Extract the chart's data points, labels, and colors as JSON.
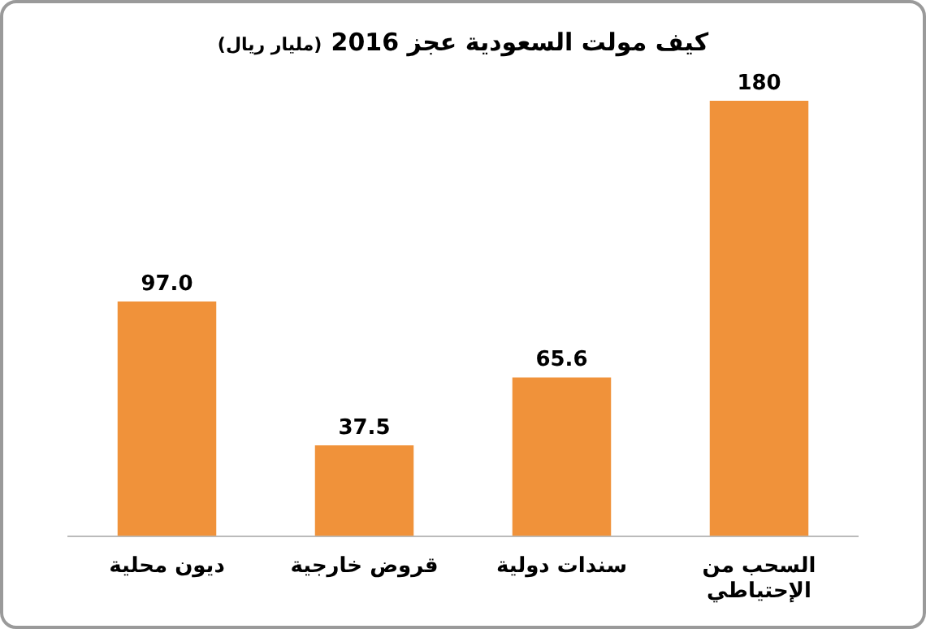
{
  "chart_data": {
    "type": "bar",
    "title": "كيف مولت السعودية عجز 2016",
    "subtitle": "(مليار ريال)",
    "categories": [
      "ديون محلية",
      "قروض خارجية",
      "سندات دولية",
      "السحب من الإحتياطي"
    ],
    "values": [
      97.0,
      37.5,
      65.6,
      180
    ],
    "value_labels": [
      "97.0",
      "37.5",
      "65.6",
      "180"
    ],
    "color": "#f0923a",
    "grid": false,
    "legend": false
  }
}
